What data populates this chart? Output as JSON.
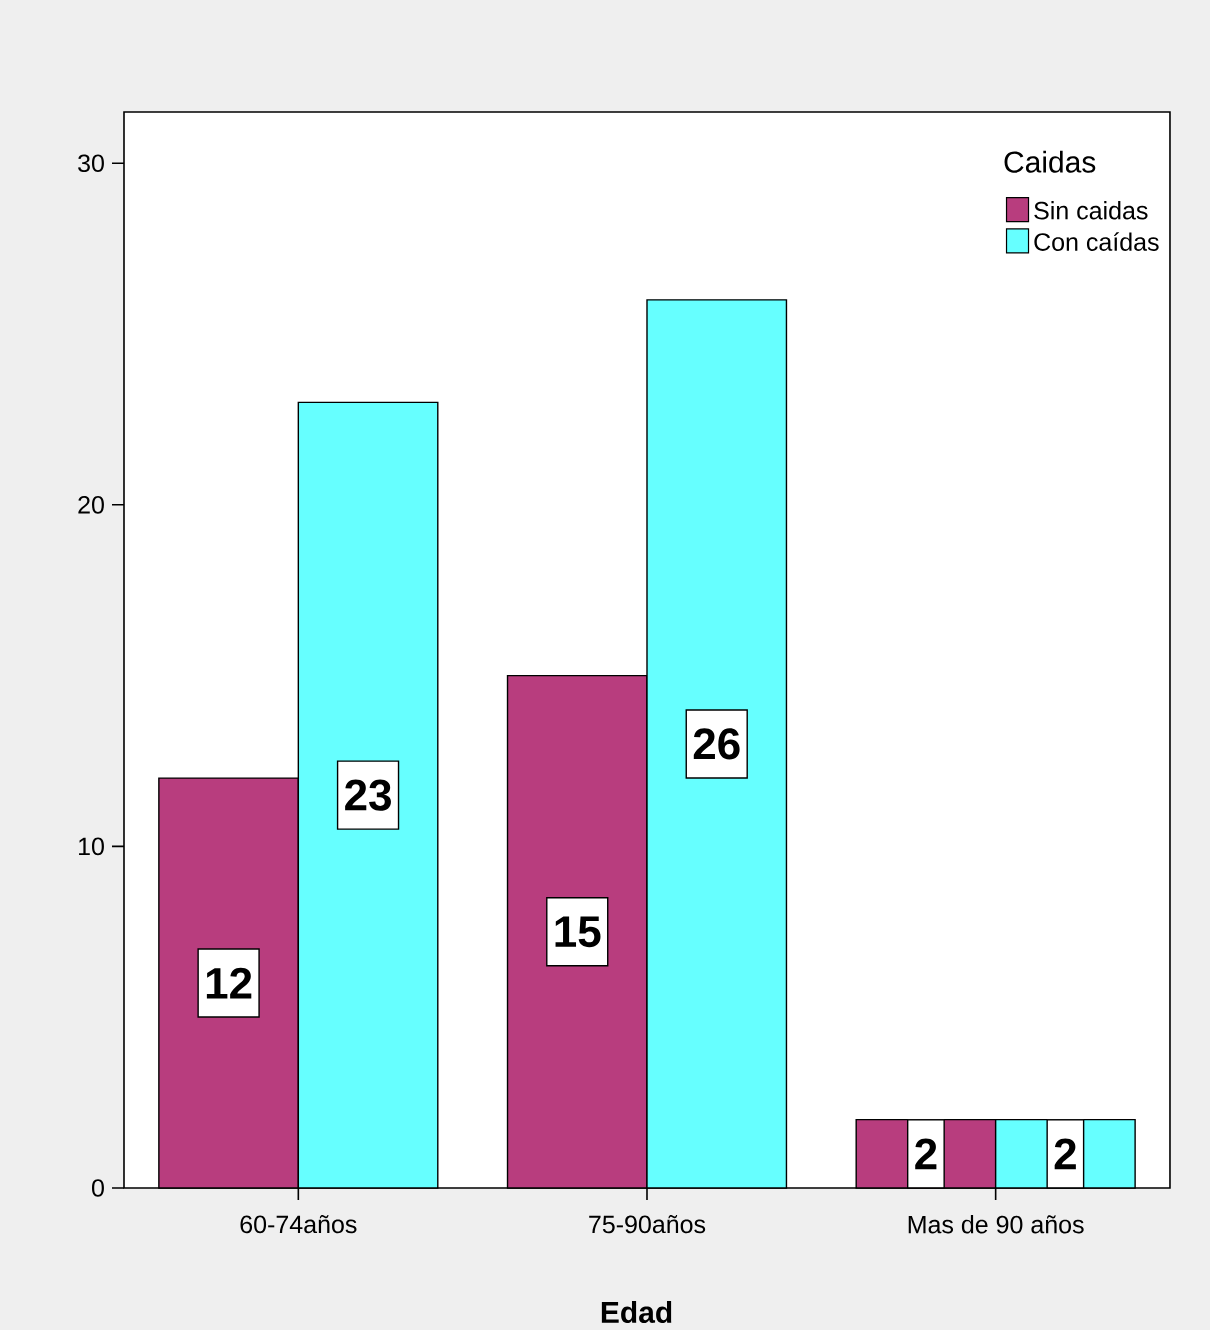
{
  "chart_data": {
    "type": "bar",
    "categories": [
      "60-74años",
      "75-90años",
      "Mas de 90 años"
    ],
    "series": [
      {
        "name": "Sin caidas",
        "color": "#b83d7e",
        "values": [
          12,
          15,
          2
        ]
      },
      {
        "name": "Con caídas",
        "color": "#66ffff",
        "values": [
          23,
          26,
          2
        ]
      }
    ],
    "xlabel": "Edad",
    "legend_title": "Caidas",
    "legend": "top right",
    "ylim": [
      0,
      31.5
    ],
    "yticks": [
      0,
      10,
      20,
      30
    ],
    "data_labels": true
  }
}
